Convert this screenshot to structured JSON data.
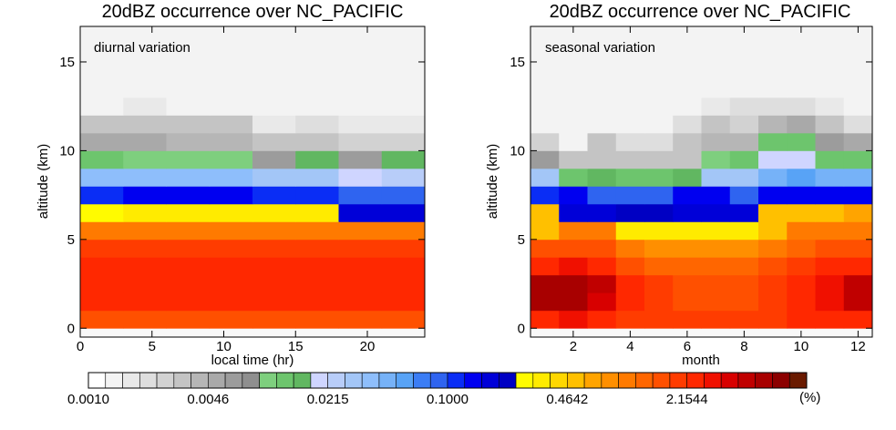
{
  "colors": {
    "palette": [
      "#ffffff",
      "#f3f3f3",
      "#e9e9e9",
      "#dedede",
      "#d2d2d2",
      "#c4c4c4",
      "#b6b6b6",
      "#a9a9a9",
      "#9c9c9c",
      "#8f8f8f",
      "#7ecf7e",
      "#6dc56d",
      "#61b761",
      "#cfd5ff",
      "#b8cdf9",
      "#a3c6f7",
      "#8ebefb",
      "#76b2f8",
      "#58a3f6",
      "#3b7df5",
      "#2f64f0",
      "#0a2df5",
      "#0000f0",
      "#0000d8",
      "#0000c3",
      "#fffb00",
      "#ffeb00",
      "#ffd700",
      "#ffc000",
      "#ffa400",
      "#ff8f00",
      "#ff7a00",
      "#ff6600",
      "#ff5000",
      "#ff3c00",
      "#ff2800",
      "#f01000",
      "#d80000",
      "#c00000",
      "#a80000",
      "#8c0000",
      "#6a1a00"
    ]
  },
  "chart_data": [
    {
      "type": "heatmap",
      "title": "20dBZ occurrence over NC_PACIFIC",
      "annotation": "diurnal variation",
      "xlabel": "local time (hr)",
      "ylabel": "altitude (km)",
      "xlim": [
        0,
        24
      ],
      "ylim": [
        -0.5,
        17
      ],
      "x_ticks": [
        {
          "v": 0,
          "label": "0"
        },
        {
          "v": 5,
          "label": "5"
        },
        {
          "v": 10,
          "label": "10"
        },
        {
          "v": 15,
          "label": "15"
        },
        {
          "v": 20,
          "label": "20"
        }
      ],
      "y_ticks": [
        {
          "v": 0,
          "label": "0"
        },
        {
          "v": 5,
          "label": "5"
        },
        {
          "v": 10,
          "label": "10"
        },
        {
          "v": 15,
          "label": "15"
        }
      ],
      "x_edges": [
        0,
        3,
        6,
        9,
        12,
        15,
        18,
        21,
        24
      ],
      "altitude_levels_km": [
        0.5,
        1.5,
        2.5,
        3.5,
        4.5,
        5.5,
        6.5,
        7.5,
        8.5,
        9.5,
        10.5,
        11.5,
        12.5,
        13.5,
        14.5,
        15.5,
        16.5
      ],
      "color_index_rows": [
        [
          33,
          33,
          33,
          33,
          33,
          33,
          33,
          33
        ],
        [
          35,
          35,
          35,
          35,
          35,
          35,
          35,
          35
        ],
        [
          35,
          35,
          35,
          35,
          35,
          35,
          35,
          35
        ],
        [
          35,
          35,
          35,
          35,
          35,
          35,
          35,
          35
        ],
        [
          34,
          34,
          34,
          34,
          34,
          34,
          34,
          34
        ],
        [
          31,
          31,
          31,
          31,
          31,
          31,
          31,
          31
        ],
        [
          25,
          26,
          26,
          26,
          26,
          26,
          23,
          23
        ],
        [
          21,
          22,
          22,
          22,
          21,
          21,
          20,
          20
        ],
        [
          16,
          16,
          16,
          16,
          15,
          15,
          13,
          14
        ],
        [
          11,
          10,
          10,
          10,
          8,
          12,
          8,
          12
        ],
        [
          7,
          7,
          6,
          6,
          5,
          5,
          4,
          4
        ],
        [
          5,
          5,
          5,
          5,
          2,
          3,
          2,
          2
        ],
        [
          1,
          2,
          1,
          1,
          1,
          1,
          1,
          1
        ],
        [
          1,
          1,
          1,
          1,
          1,
          1,
          1,
          1
        ],
        [
          1,
          1,
          1,
          1,
          1,
          1,
          1,
          1
        ],
        [
          1,
          1,
          1,
          1,
          1,
          1,
          1,
          1
        ],
        [
          1,
          1,
          1,
          1,
          1,
          1,
          1,
          1
        ]
      ]
    },
    {
      "type": "heatmap",
      "title": "20dBZ occurrence over NC_PACIFIC",
      "annotation": "seasonal variation",
      "xlabel": "month",
      "ylabel": "altitude (km)",
      "xlim": [
        0.5,
        12.5
      ],
      "ylim": [
        -0.5,
        17
      ],
      "x_ticks": [
        {
          "v": 2,
          "label": "2"
        },
        {
          "v": 4,
          "label": "4"
        },
        {
          "v": 6,
          "label": "6"
        },
        {
          "v": 8,
          "label": "8"
        },
        {
          "v": 10,
          "label": "10"
        },
        {
          "v": 12,
          "label": "12"
        }
      ],
      "y_ticks": [
        {
          "v": 0,
          "label": "0"
        },
        {
          "v": 5,
          "label": "5"
        },
        {
          "v": 10,
          "label": "10"
        },
        {
          "v": 15,
          "label": "15"
        }
      ],
      "x_edges": [
        0.5,
        1.5,
        2.5,
        3.5,
        4.5,
        5.5,
        6.5,
        7.5,
        8.5,
        9.5,
        10.5,
        11.5,
        12.5
      ],
      "altitude_levels_km": [
        0.5,
        1.5,
        2.5,
        3.5,
        4.5,
        5.5,
        6.5,
        7.5,
        8.5,
        9.5,
        10.5,
        11.5,
        12.5,
        13.5,
        14.5,
        15.5,
        16.5
      ],
      "color_index_rows": [
        [
          35,
          36,
          35,
          34,
          34,
          34,
          34,
          34,
          34,
          35,
          35,
          35
        ],
        [
          39,
          39,
          37,
          35,
          34,
          33,
          33,
          33,
          34,
          35,
          36,
          38
        ],
        [
          39,
          39,
          38,
          35,
          34,
          33,
          33,
          33,
          34,
          35,
          36,
          38
        ],
        [
          35,
          36,
          35,
          33,
          32,
          32,
          32,
          32,
          33,
          34,
          35,
          35
        ],
        [
          33,
          33,
          33,
          31,
          30,
          30,
          30,
          30,
          31,
          32,
          33,
          33
        ],
        [
          28,
          31,
          31,
          26,
          26,
          26,
          26,
          26,
          28,
          31,
          31,
          31
        ],
        [
          28,
          23,
          23,
          24,
          24,
          23,
          23,
          23,
          28,
          28,
          28,
          29
        ],
        [
          21,
          22,
          20,
          20,
          20,
          22,
          22,
          20,
          22,
          22,
          22,
          22
        ],
        [
          15,
          11,
          12,
          11,
          11,
          12,
          15,
          15,
          17,
          18,
          17,
          17
        ],
        [
          8,
          5,
          5,
          5,
          5,
          5,
          10,
          11,
          13,
          13,
          11,
          11
        ],
        [
          4,
          1,
          5,
          3,
          3,
          5,
          6,
          6,
          11,
          11,
          8,
          7
        ],
        [
          1,
          1,
          1,
          1,
          1,
          3,
          5,
          4,
          6,
          7,
          5,
          3
        ],
        [
          1,
          1,
          1,
          1,
          1,
          1,
          2,
          3,
          3,
          3,
          2,
          1
        ],
        [
          1,
          1,
          1,
          1,
          1,
          1,
          1,
          1,
          1,
          1,
          1,
          1
        ],
        [
          1,
          1,
          1,
          1,
          1,
          1,
          1,
          1,
          1,
          1,
          1,
          1
        ],
        [
          1,
          1,
          1,
          1,
          1,
          1,
          1,
          1,
          1,
          1,
          1,
          1
        ],
        [
          1,
          1,
          1,
          1,
          1,
          1,
          1,
          1,
          1,
          1,
          1,
          1
        ]
      ]
    }
  ],
  "colorbar": {
    "levels": 42,
    "scale": "log",
    "tick_labels": [
      "0.0010",
      "0.0046",
      "0.0215",
      "0.1000",
      "0.4642",
      "2.1544"
    ],
    "tick_at_level": [
      0,
      7,
      14,
      21,
      28,
      35
    ],
    "unit_label": "(%)"
  }
}
